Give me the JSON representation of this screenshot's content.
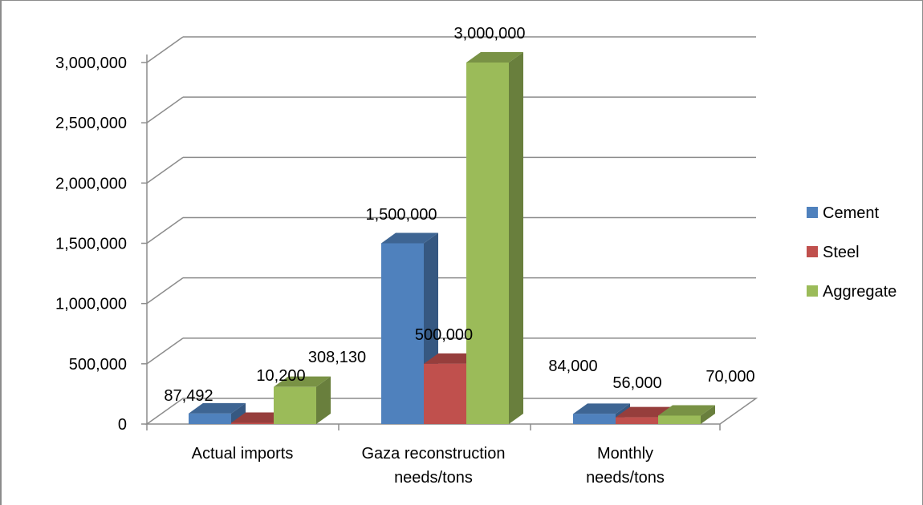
{
  "chart_data": {
    "type": "bar",
    "title": "",
    "xlabel": "",
    "ylabel": "",
    "ylim": [
      0,
      3000000
    ],
    "grid": true,
    "legend_position": "right",
    "categories": [
      [
        "Actual imports"
      ],
      [
        "Gaza reconstruction",
        "needs/tons"
      ],
      [
        "Monthly",
        "needs/tons"
      ]
    ],
    "series": [
      {
        "name": "Cement",
        "color": "#4f81bd",
        "values": [
          87492,
          1500000,
          84000
        ],
        "labels": [
          "87,492",
          "1,500,000",
          "84,000"
        ]
      },
      {
        "name": "Steel",
        "color": "#c0504d",
        "values": [
          10200,
          500000,
          56000
        ],
        "labels": [
          "10,200",
          "500,000",
          "56,000"
        ]
      },
      {
        "name": "Aggregate",
        "color": "#9bbb59",
        "values": [
          308130,
          3000000,
          70000
        ],
        "labels": [
          "308,130",
          "3,000,000",
          "70,000"
        ]
      }
    ],
    "y_ticks": [
      {
        "value": 0,
        "label": "0"
      },
      {
        "value": 500000,
        "label": "500,000"
      },
      {
        "value": 1000000,
        "label": "1,000,000"
      },
      {
        "value": 1500000,
        "label": "1,500,000"
      },
      {
        "value": 2000000,
        "label": "2,000,000"
      },
      {
        "value": 2500000,
        "label": "2,500,000"
      },
      {
        "value": 3000000,
        "label": "3,000,000"
      }
    ]
  }
}
